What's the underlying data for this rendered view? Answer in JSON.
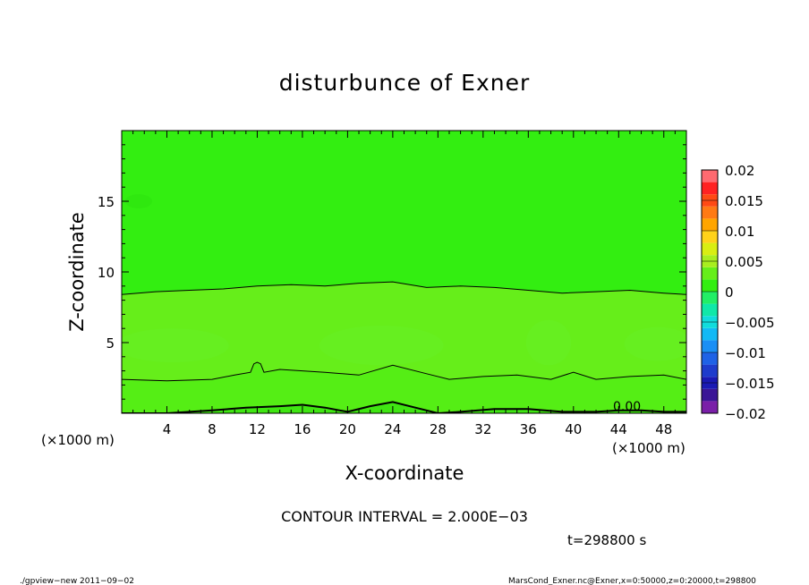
{
  "chart_data": {
    "type": "heatmap",
    "title": "disturbunce of Exner",
    "xlabel": "X-coordinate",
    "ylabel": "Z-coordinate",
    "x_unit_left": "(×1000 m)",
    "x_unit_right": "(×1000 m)",
    "xlim": [
      0,
      50
    ],
    "ylim": [
      0,
      20
    ],
    "x_ticks": [
      4,
      8,
      12,
      16,
      20,
      24,
      28,
      32,
      36,
      40,
      44,
      48
    ],
    "y_ticks": [
      5,
      10,
      15
    ],
    "x_tick_labels": [
      "4",
      "8",
      "12",
      "16",
      "20",
      "24",
      "28",
      "32",
      "36",
      "40",
      "44",
      "48"
    ],
    "y_tick_labels": [
      "5",
      "10",
      "15"
    ],
    "colorbar": {
      "levels": [
        -0.02,
        -0.018,
        -0.016,
        -0.014,
        -0.012,
        -0.01,
        -0.008,
        -0.006,
        -0.004,
        -0.002,
        0,
        0.002,
        0.004,
        0.006,
        0.008,
        0.01,
        0.012,
        0.014,
        0.016,
        0.018,
        0.02
      ],
      "colors": [
        "#7a1fa8",
        "#3a1696",
        "#1a1ab4",
        "#1e3ccc",
        "#1f62e6",
        "#1b8ff5",
        "#12b9f5",
        "#10dcdc",
        "#10e8a8",
        "#22ee66",
        "#33ee11",
        "#66ee1a",
        "#a9ee1f",
        "#d9ee12",
        "#ffd21a",
        "#ffa500",
        "#ff7a14",
        "#ff4a14",
        "#ff2222",
        "#ff6a70",
        "#ffa8ae"
      ],
      "tick_labels": [
        "0.02",
        "0.015",
        "0.01",
        "0.005",
        "0",
        "−0.005",
        "−0.01",
        "−0.015",
        "−0.02"
      ],
      "tick_values": [
        0.02,
        0.015,
        0.01,
        0.005,
        0,
        -0.005,
        -0.01,
        -0.015,
        -0.02
      ]
    },
    "contour_label": "0.00",
    "contours": [
      {
        "level": 0.0,
        "x": [
          0,
          3,
          6,
          9,
          12,
          15,
          18,
          21,
          24,
          27,
          30,
          33,
          36,
          39,
          42,
          45,
          48,
          50
        ],
        "z": [
          8.4,
          8.6,
          8.7,
          8.8,
          9.0,
          9.1,
          9.0,
          9.2,
          9.3,
          8.9,
          9.0,
          8.9,
          8.7,
          8.5,
          8.6,
          8.7,
          8.5,
          8.4
        ]
      },
      {
        "level": 0.002,
        "x": [
          0,
          4,
          8,
          10,
          11.4,
          11.7,
          12,
          12.3,
          12.6,
          14,
          18,
          21,
          24,
          27,
          29,
          32,
          35,
          38,
          40,
          42,
          45,
          48,
          50
        ],
        "z": [
          2.4,
          2.3,
          2.4,
          2.7,
          2.9,
          3.5,
          3.6,
          3.5,
          2.9,
          3.1,
          2.9,
          2.7,
          3.4,
          2.8,
          2.4,
          2.6,
          2.7,
          2.4,
          2.9,
          2.4,
          2.6,
          2.7,
          2.4
        ]
      },
      {
        "level": 0.004,
        "x": [
          0,
          4,
          8,
          11,
          14,
          16,
          18,
          20,
          22,
          24,
          26,
          28,
          30,
          33,
          36,
          39,
          42,
          44,
          46,
          48,
          50
        ],
        "z": [
          0,
          0,
          0.2,
          0.4,
          0.5,
          0.6,
          0.4,
          0.1,
          0.5,
          0.8,
          0.4,
          0.0,
          0.1,
          0.3,
          0.3,
          0.1,
          0.1,
          0.2,
          0.2,
          0.1,
          0.1
        ]
      }
    ],
    "shaded_regions": [
      {
        "level_band": "0.002–0.004",
        "x": [
          0,
          4,
          8,
          10,
          11.4,
          11.7,
          12,
          12.3,
          12.6,
          14,
          18,
          21,
          24,
          27,
          29,
          32,
          35,
          38,
          40,
          42,
          45,
          48,
          50
        ],
        "z_top": [
          8.4,
          8.6,
          8.7,
          8.8,
          9.0,
          9.1,
          9.0,
          9.2,
          9.3,
          8.9,
          9.0,
          8.9,
          8.7,
          8.5,
          8.6,
          8.7,
          8.5,
          8.4,
          8.4,
          8.3,
          8.5,
          8.5,
          8.4
        ]
      }
    ],
    "blobs": [
      {
        "cx": 4.5,
        "cz": 4.8,
        "rx": 5,
        "rz": 1.2
      },
      {
        "cx": 23,
        "cz": 4.8,
        "rx": 5.5,
        "rz": 1.4
      },
      {
        "cx": 37.8,
        "cz": 5,
        "rx": 2,
        "rz": 1.6
      },
      {
        "cx": 47.5,
        "cz": 4.9,
        "rx": 3,
        "rz": 1.2
      },
      {
        "cx": 1.5,
        "cz": 15,
        "rx": 1.2,
        "rz": 0.5
      }
    ]
  },
  "footer": {
    "contour_interval": "CONTOUR INTERVAL = 2.000E−03",
    "time": "t=298800 s",
    "program": "./gpview−new   2011−09−02",
    "source": "MarsCond_Exner.nc@Exner,x=0:50000,z=0:20000,t=298800"
  }
}
